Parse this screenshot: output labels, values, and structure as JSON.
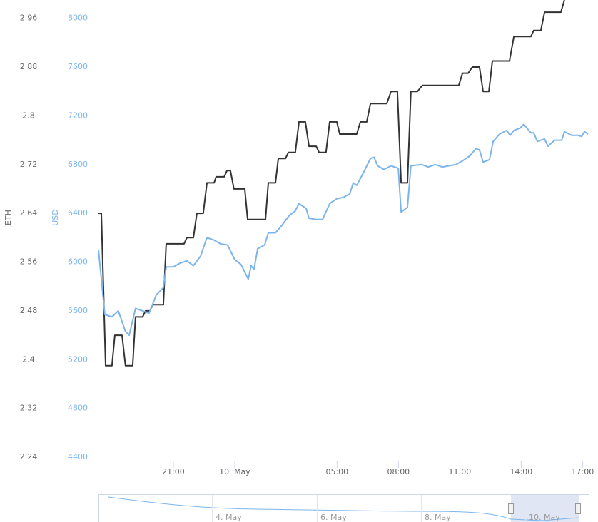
{
  "chart_data": {
    "type": "line",
    "ylabel": "ETH",
    "y2label": "USD",
    "xlim": [
      17.34,
      41.3
    ],
    "xticks": [
      {
        "value": 21,
        "label": "21:00"
      },
      {
        "value": 24,
        "label": "10. May"
      },
      {
        "value": 29,
        "label": "05:00"
      },
      {
        "value": 32,
        "label": "08:00"
      },
      {
        "value": 35,
        "label": "11:00"
      },
      {
        "value": 38,
        "label": "14:00"
      },
      {
        "value": 41,
        "label": "17:00"
      }
    ],
    "ylim": [
      2.24,
      2.99
    ],
    "yticks": [
      2.24,
      2.32,
      2.4,
      2.48,
      2.56,
      2.64,
      2.72,
      2.8,
      2.88,
      2.96
    ],
    "y2lim": [
      4400,
      8150
    ],
    "y2ticks": [
      4400,
      4800,
      5200,
      5600,
      6000,
      6400,
      6800,
      7200,
      7600,
      8000
    ],
    "series": [
      {
        "color": "#333333",
        "x": [
          17.34,
          17.48,
          17.69,
          18.0,
          18.14,
          18.49,
          18.66,
          19.01,
          19.15,
          19.5,
          19.64,
          19.85,
          19.99,
          20.51,
          20.65,
          21.52,
          21.66,
          21.98,
          22.15,
          22.46,
          22.64,
          22.99,
          23.09,
          23.48,
          23.62,
          23.79,
          23.96,
          24.49,
          24.63,
          25.5,
          25.64,
          25.99,
          26.13,
          26.48,
          26.62,
          26.96,
          27.14,
          27.45,
          27.63,
          27.98,
          28.12,
          28.46,
          28.64,
          28.99,
          29.13,
          29.96,
          30.14,
          30.45,
          30.63,
          31.43,
          31.64,
          31.95,
          32.13,
          32.44,
          32.61,
          32.93,
          33.17,
          34.95,
          35.13,
          35.41,
          35.61,
          35.96,
          36.14,
          36.42,
          36.59,
          37.43,
          37.64,
          38.47,
          38.61,
          38.96,
          39.14,
          39.94,
          40.11
        ],
        "values": [
          2.64,
          2.64,
          2.39,
          2.39,
          2.44,
          2.44,
          2.39,
          2.39,
          2.47,
          2.47,
          2.48,
          2.48,
          2.49,
          2.49,
          2.59,
          2.59,
          2.6,
          2.6,
          2.64,
          2.64,
          2.69,
          2.69,
          2.7,
          2.7,
          2.71,
          2.71,
          2.68,
          2.68,
          2.63,
          2.63,
          2.69,
          2.69,
          2.73,
          2.73,
          2.74,
          2.74,
          2.79,
          2.79,
          2.75,
          2.75,
          2.74,
          2.74,
          2.79,
          2.79,
          2.77,
          2.77,
          2.79,
          2.79,
          2.82,
          2.82,
          2.84,
          2.84,
          2.69,
          2.69,
          2.84,
          2.84,
          2.85,
          2.85,
          2.87,
          2.87,
          2.88,
          2.88,
          2.84,
          2.84,
          2.89,
          2.89,
          2.93,
          2.93,
          2.94,
          2.94,
          2.97,
          2.97,
          2.99
        ]
      },
      {
        "color": "#7cb5ec",
        "axis": "y2",
        "x": [
          17.34,
          17.65,
          18.0,
          18.31,
          18.66,
          18.84,
          19.15,
          19.5,
          19.81,
          20.16,
          20.51,
          20.65,
          21.0,
          21.31,
          21.66,
          21.98,
          22.33,
          22.64,
          22.99,
          23.3,
          23.65,
          24.0,
          24.31,
          24.66,
          24.8,
          24.94,
          25.12,
          25.46,
          25.64,
          25.99,
          26.3,
          26.65,
          26.96,
          27.14,
          27.49,
          27.63,
          27.98,
          28.29,
          28.64,
          28.99,
          29.3,
          29.62,
          29.79,
          29.96,
          30.31,
          30.63,
          30.81,
          30.98,
          31.29,
          31.64,
          31.99,
          32.13,
          32.44,
          32.61,
          33.14,
          33.45,
          33.8,
          34.15,
          34.46,
          34.81,
          35.13,
          35.48,
          35.79,
          35.96,
          36.14,
          36.45,
          36.63,
          36.94,
          37.29,
          37.46,
          37.64,
          37.95,
          38.13,
          38.47,
          38.61,
          38.79,
          39.14,
          39.31,
          39.63,
          39.98,
          40.11,
          40.46,
          40.78,
          40.95,
          41.09,
          41.27
        ],
        "values": [
          6100,
          5570,
          5550,
          5600,
          5430,
          5400,
          5620,
          5600,
          5580,
          5730,
          5790,
          5960,
          5960,
          5990,
          6010,
          5970,
          6050,
          6200,
          6180,
          6150,
          6140,
          6020,
          5980,
          5860,
          5970,
          5940,
          6110,
          6140,
          6240,
          6240,
          6300,
          6380,
          6420,
          6480,
          6440,
          6360,
          6350,
          6350,
          6480,
          6520,
          6530,
          6560,
          6650,
          6630,
          6740,
          6850,
          6860,
          6790,
          6760,
          6790,
          6770,
          6410,
          6450,
          6790,
          6800,
          6780,
          6800,
          6780,
          6790,
          6800,
          6830,
          6870,
          6930,
          6920,
          6820,
          6840,
          6990,
          7050,
          7080,
          7040,
          7080,
          7100,
          7130,
          7060,
          7060,
          6990,
          7010,
          6950,
          7000,
          7000,
          7070,
          7040,
          7040,
          7030,
          7070,
          7050
        ]
      }
    ]
  },
  "navigator": {
    "labels": [
      "4. May",
      "6. May",
      "8. May",
      "10. May"
    ]
  }
}
